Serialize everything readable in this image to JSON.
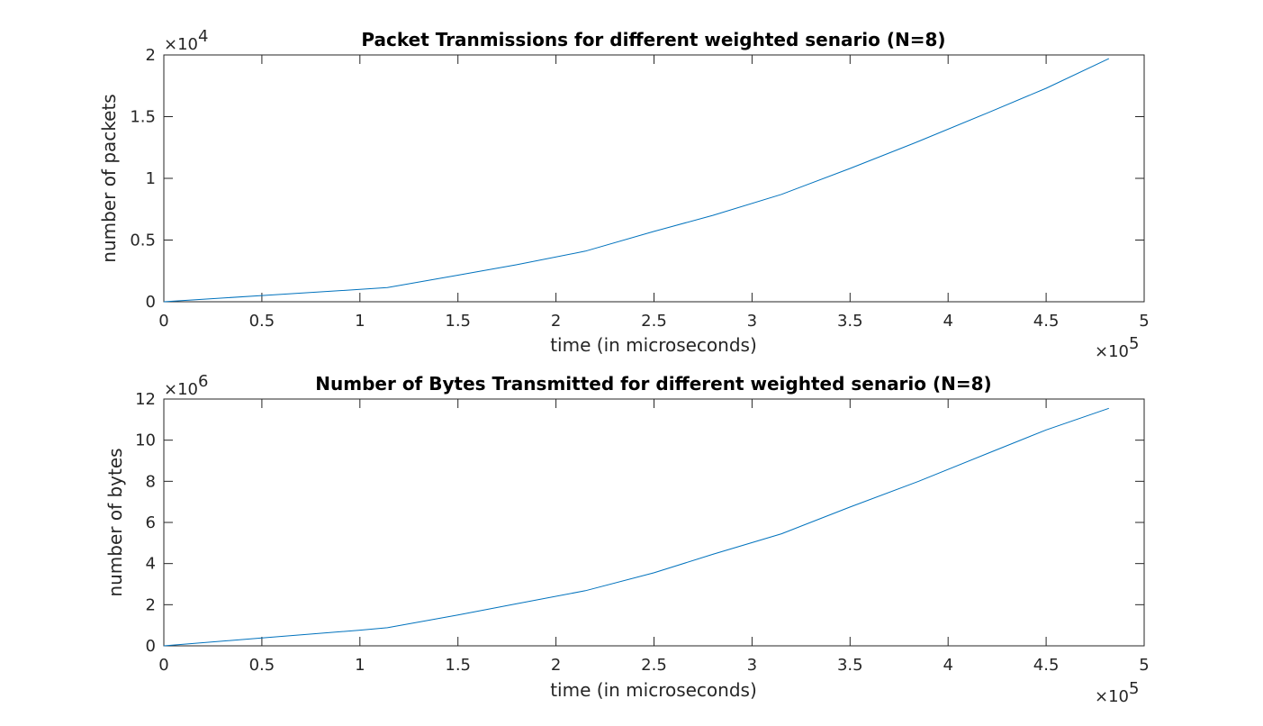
{
  "chart_data": [
    {
      "type": "line",
      "title": "Packet Tranmissions for different weighted senario (N=8)",
      "xlabel": "time (in microseconds)",
      "ylabel": "number of packets",
      "xlim": [
        0,
        500000
      ],
      "ylim": [
        0,
        20000
      ],
      "x_ticks": [
        "0",
        "0.5",
        "1",
        "1.5",
        "2",
        "2.5",
        "3",
        "3.5",
        "4",
        "4.5",
        "5"
      ],
      "y_ticks": [
        "0",
        "0.5",
        "1",
        "1.5",
        "2"
      ],
      "x_exponent": "5",
      "y_exponent": "4",
      "grid": false,
      "color": "#0072BD",
      "series": [
        {
          "x": [
            0,
            50000,
            100000,
            114000,
            150000,
            180000,
            215000,
            250000,
            280000,
            315000,
            350000,
            385000,
            420000,
            450000,
            482000
          ],
          "values": [
            0,
            500,
            1000,
            1150,
            2150,
            3000,
            4100,
            5700,
            7000,
            8700,
            10800,
            13000,
            15300,
            17300,
            19700
          ]
        }
      ]
    },
    {
      "type": "line",
      "title": "Number of Bytes Transmitted for different weighted senario (N=8)",
      "xlabel": "time (in microseconds)",
      "ylabel": "number of bytes",
      "xlim": [
        0,
        500000
      ],
      "ylim": [
        0,
        12000000
      ],
      "x_ticks": [
        "0",
        "0.5",
        "1",
        "1.5",
        "2",
        "2.5",
        "3",
        "3.5",
        "4",
        "4.5",
        "5"
      ],
      "y_ticks": [
        "0",
        "2",
        "4",
        "6",
        "8",
        "10",
        "12"
      ],
      "x_exponent": "5",
      "y_exponent": "6",
      "grid": false,
      "color": "#0072BD",
      "series": [
        {
          "x": [
            0,
            50000,
            100000,
            114000,
            150000,
            180000,
            215000,
            250000,
            280000,
            315000,
            350000,
            385000,
            420000,
            450000,
            482000
          ],
          "values": [
            0,
            380000,
            760000,
            880000,
            1500000,
            2050000,
            2680000,
            3550000,
            4450000,
            5450000,
            6750000,
            8000000,
            9350000,
            10500000,
            11550000
          ]
        }
      ]
    }
  ]
}
